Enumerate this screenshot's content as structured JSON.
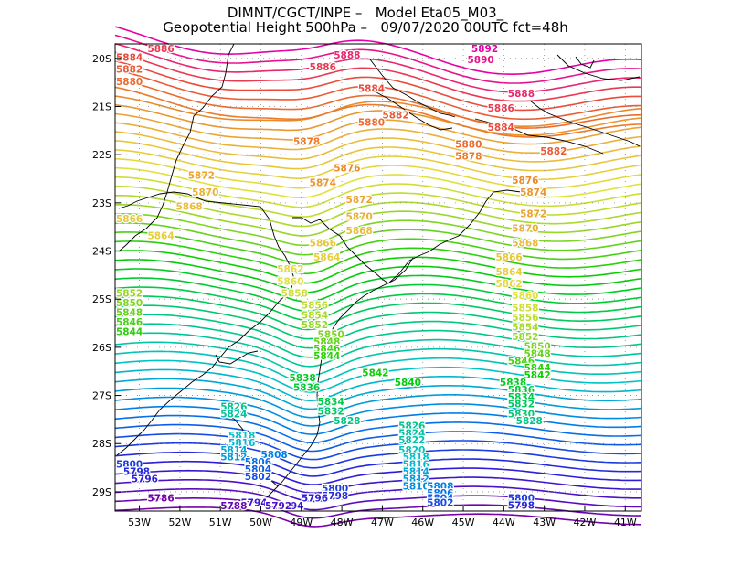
{
  "title": {
    "line1": "DIMNT/CGCT/INPE –   Model Eta05_M03_",
    "line2": "Geopotential Height 500hPa –   09/07/2020 00UTC fct=48h"
  },
  "axes": {
    "lat_ticks": [
      "20S",
      "21S",
      "22S",
      "23S",
      "24S",
      "25S",
      "26S",
      "27S",
      "28S",
      "29S"
    ],
    "lon_ticks": [
      "53W",
      "52W",
      "51W",
      "50W",
      "49W",
      "48W",
      "47W",
      "46W",
      "45W",
      "44W",
      "43W",
      "42W",
      "41W"
    ]
  },
  "chart_data": {
    "type": "contour",
    "variable": "Geopotential Height 500hPa",
    "units": "gpm",
    "lon_range": [
      -53.6,
      -40.6
    ],
    "lat_range": [
      -29.4,
      -19.7
    ],
    "contour_interval": 2,
    "contour_min": 5786,
    "contour_max": 5892,
    "labels": [
      {
        "text": "5892",
        "lon": -44.8,
        "lat": -19.75
      },
      {
        "text": "5890",
        "lon": -44.9,
        "lat": -20.1
      },
      {
        "text": "5888",
        "lon": -48.2,
        "lat": -20.0
      },
      {
        "text": "5888",
        "lon": -43.9,
        "lat": -20.8
      },
      {
        "text": "5886",
        "lon": -52.8,
        "lat": -19.8
      },
      {
        "text": "5886",
        "lon": -48.8,
        "lat": -20.25
      },
      {
        "text": "5886",
        "lon": -44.4,
        "lat": -21.1
      },
      {
        "text": "5884",
        "lon": -53.6,
        "lat": -20.05
      },
      {
        "text": "5884",
        "lon": -47.6,
        "lat": -20.7
      },
      {
        "text": "5884",
        "lon": -44.4,
        "lat": -21.5
      },
      {
        "text": "5882",
        "lon": -53.6,
        "lat": -20.3
      },
      {
        "text": "5882",
        "lon": -47.0,
        "lat": -21.25
      },
      {
        "text": "5882",
        "lon": -43.1,
        "lat": -22.0
      },
      {
        "text": "5880",
        "lon": -53.6,
        "lat": -20.55
      },
      {
        "text": "5880",
        "lon": -47.6,
        "lat": -21.4
      },
      {
        "text": "5880",
        "lon": -45.2,
        "lat": -21.85
      },
      {
        "text": "5878",
        "lon": -49.2,
        "lat": -21.8
      },
      {
        "text": "5878",
        "lon": -45.2,
        "lat": -22.1
      },
      {
        "text": "5876",
        "lon": -48.2,
        "lat": -22.35
      },
      {
        "text": "5876",
        "lon": -43.8,
        "lat": -22.6
      },
      {
        "text": "5874",
        "lon": -48.8,
        "lat": -22.65
      },
      {
        "text": "5874",
        "lon": -43.6,
        "lat": -22.85
      },
      {
        "text": "5872",
        "lon": -51.8,
        "lat": -22.5
      },
      {
        "text": "5872",
        "lon": -47.9,
        "lat": -23.0
      },
      {
        "text": "5872",
        "lon": -43.6,
        "lat": -23.3
      },
      {
        "text": "5870",
        "lon": -51.7,
        "lat": -22.85
      },
      {
        "text": "5870",
        "lon": -47.9,
        "lat": -23.35
      },
      {
        "text": "5870",
        "lon": -43.8,
        "lat": -23.6
      },
      {
        "text": "5868",
        "lon": -52.1,
        "lat": -23.15
      },
      {
        "text": "5868",
        "lon": -47.9,
        "lat": -23.65
      },
      {
        "text": "5868",
        "lon": -43.8,
        "lat": -23.9
      },
      {
        "text": "5866",
        "lon": -53.6,
        "lat": -23.4
      },
      {
        "text": "5866",
        "lon": -48.8,
        "lat": -23.9
      },
      {
        "text": "5866",
        "lon": -44.2,
        "lat": -24.2
      },
      {
        "text": "5864",
        "lon": -52.8,
        "lat": -23.75
      },
      {
        "text": "5864",
        "lon": -48.7,
        "lat": -24.2
      },
      {
        "text": "5864",
        "lon": -44.2,
        "lat": -24.5
      },
      {
        "text": "5862",
        "lon": -49.6,
        "lat": -24.45
      },
      {
        "text": "5862",
        "lon": -44.2,
        "lat": -24.75
      },
      {
        "text": "5860",
        "lon": -49.6,
        "lat": -24.7
      },
      {
        "text": "5860",
        "lon": -43.8,
        "lat": -25.0
      },
      {
        "text": "5858",
        "lon": -49.5,
        "lat": -24.95
      },
      {
        "text": "5858",
        "lon": -43.8,
        "lat": -25.25
      },
      {
        "text": "5856",
        "lon": -49.0,
        "lat": -25.2
      },
      {
        "text": "5856",
        "lon": -43.8,
        "lat": -25.45
      },
      {
        "text": "5854",
        "lon": -49.0,
        "lat": -25.4
      },
      {
        "text": "5854",
        "lon": -43.8,
        "lat": -25.65
      },
      {
        "text": "5852",
        "lon": -53.6,
        "lat": -24.95
      },
      {
        "text": "5852",
        "lon": -49.0,
        "lat": -25.6
      },
      {
        "text": "5852",
        "lon": -43.8,
        "lat": -25.85
      },
      {
        "text": "5850",
        "lon": -53.6,
        "lat": -25.15
      },
      {
        "text": "5850",
        "lon": -48.6,
        "lat": -25.8
      },
      {
        "text": "5850",
        "lon": -43.5,
        "lat": -26.05
      },
      {
        "text": "5848",
        "lon": -53.6,
        "lat": -25.35
      },
      {
        "text": "5848",
        "lon": -48.7,
        "lat": -25.95
      },
      {
        "text": "5848",
        "lon": -43.5,
        "lat": -26.2
      },
      {
        "text": "5846",
        "lon": -53.6,
        "lat": -25.55
      },
      {
        "text": "5846",
        "lon": -48.7,
        "lat": -26.1
      },
      {
        "text": "5846",
        "lon": -43.9,
        "lat": -26.35
      },
      {
        "text": "5844",
        "lon": -53.6,
        "lat": -25.75
      },
      {
        "text": "5844",
        "lon": -48.7,
        "lat": -26.25
      },
      {
        "text": "5844",
        "lon": -43.5,
        "lat": -26.5
      },
      {
        "text": "5842",
        "lon": -47.5,
        "lat": -26.6
      },
      {
        "text": "5842",
        "lon": -43.5,
        "lat": -26.65
      },
      {
        "text": "5840",
        "lon": -46.7,
        "lat": -26.8
      },
      {
        "text": "5838",
        "lon": -49.3,
        "lat": -26.7
      },
      {
        "text": "5838",
        "lon": -44.1,
        "lat": -26.8
      },
      {
        "text": "5836",
        "lon": -49.2,
        "lat": -26.9
      },
      {
        "text": "5836",
        "lon": -43.9,
        "lat": -26.95
      },
      {
        "text": "5834",
        "lon": -48.6,
        "lat": -27.2
      },
      {
        "text": "5834",
        "lon": -43.9,
        "lat": -27.1
      },
      {
        "text": "5832",
        "lon": -48.6,
        "lat": -27.4
      },
      {
        "text": "5832",
        "lon": -43.9,
        "lat": -27.25
      },
      {
        "text": "5830",
        "lon": -43.9,
        "lat": -27.45
      },
      {
        "text": "5828",
        "lon": -48.2,
        "lat": -27.6
      },
      {
        "text": "5828",
        "lon": -43.7,
        "lat": -27.6
      },
      {
        "text": "5826",
        "lon": -51.0,
        "lat": -27.3
      },
      {
        "text": "5826",
        "lon": -46.6,
        "lat": -27.7
      },
      {
        "text": "5824",
        "lon": -51.0,
        "lat": -27.45
      },
      {
        "text": "5824",
        "lon": -46.6,
        "lat": -27.85
      },
      {
        "text": "5822",
        "lon": -46.6,
        "lat": -28.0
      },
      {
        "text": "5820",
        "lon": -46.6,
        "lat": -28.2
      },
      {
        "text": "5818",
        "lon": -50.8,
        "lat": -27.9
      },
      {
        "text": "5818",
        "lon": -46.5,
        "lat": -28.35
      },
      {
        "text": "5816",
        "lon": -50.8,
        "lat": -28.05
      },
      {
        "text": "5816",
        "lon": -46.5,
        "lat": -28.5
      },
      {
        "text": "5814",
        "lon": -51.0,
        "lat": -28.2
      },
      {
        "text": "5814",
        "lon": -46.5,
        "lat": -28.65
      },
      {
        "text": "5812",
        "lon": -51.0,
        "lat": -28.35
      },
      {
        "text": "5812",
        "lon": -46.5,
        "lat": -28.8
      },
      {
        "text": "5810",
        "lon": -46.5,
        "lat": -28.95
      },
      {
        "text": "5808",
        "lon": -50.0,
        "lat": -28.3
      },
      {
        "text": "5808",
        "lon": -45.9,
        "lat": -28.95
      },
      {
        "text": "5806",
        "lon": -50.4,
        "lat": -28.45
      },
      {
        "text": "5806",
        "lon": -45.9,
        "lat": -29.1
      },
      {
        "text": "5804",
        "lon": -50.4,
        "lat": -28.6
      },
      {
        "text": "5804",
        "lon": -45.9,
        "lat": -29.2
      },
      {
        "text": "5802",
        "lon": -50.4,
        "lat": -28.75
      },
      {
        "text": "5802",
        "lon": -45.9,
        "lat": -29.3
      },
      {
        "text": "5800",
        "lon": -53.6,
        "lat": -28.5
      },
      {
        "text": "5800",
        "lon": -48.5,
        "lat": -29.0
      },
      {
        "text": "5800",
        "lon": -43.9,
        "lat": -29.2
      },
      {
        "text": "5798",
        "lon": -53.4,
        "lat": -28.65
      },
      {
        "text": "5798",
        "lon": -48.5,
        "lat": -29.15
      },
      {
        "text": "5798",
        "lon": -43.9,
        "lat": -29.35
      },
      {
        "text": "5796",
        "lon": -53.2,
        "lat": -28.8
      },
      {
        "text": "5796",
        "lon": -49.0,
        "lat": -29.2
      },
      {
        "text": "5794",
        "lon": -50.5,
        "lat": -29.3
      },
      {
        "text": "5794",
        "lon": -49.6,
        "lat": -29.4
      },
      {
        "text": "5792",
        "lon": -49.9,
        "lat": -29.45
      },
      {
        "text": "5790",
        "lon": -51.0,
        "lat": -29.35
      },
      {
        "text": "5788",
        "lon": -51.0,
        "lat": -29.45
      },
      {
        "text": "5786",
        "lon": -52.8,
        "lat": -29.2
      }
    ]
  }
}
